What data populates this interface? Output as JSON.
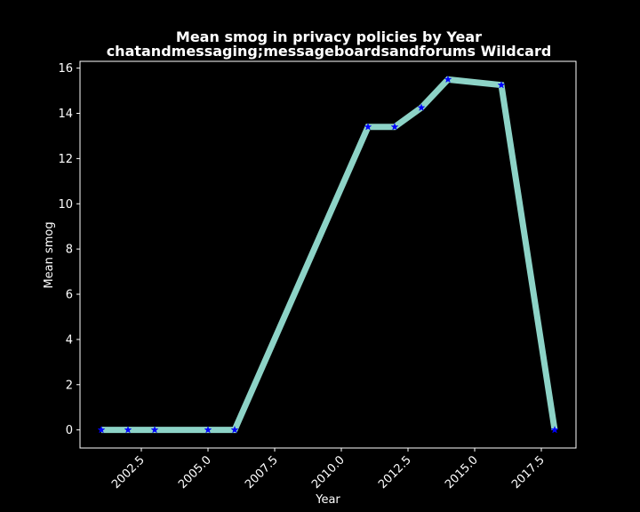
{
  "chart_data": {
    "type": "line",
    "title": "Mean smog in privacy policies by Year",
    "subtitle": "chatandmessaging;messageboardsandforums Wildcard",
    "xlabel": "Year",
    "ylabel": "Mean smog",
    "x": [
      2001,
      2002,
      2003,
      2005,
      2006,
      2011,
      2012,
      2013,
      2014,
      2016,
      2018
    ],
    "series": [
      {
        "values": [
          0,
          0,
          0,
          0,
          0,
          13.4,
          13.4,
          14.25,
          15.5,
          15.25,
          0
        ]
      }
    ],
    "xlim": [
      2000.2,
      2018.8
    ],
    "ylim": [
      -0.8,
      16.3
    ],
    "xticks": [
      2002.5,
      2005.0,
      2007.5,
      2010.0,
      2012.5,
      2015.0,
      2017.5
    ],
    "xtick_labels": [
      "2002.5",
      "2005.0",
      "2007.5",
      "2010.0",
      "2012.5",
      "2015.0",
      "2017.5"
    ],
    "yticks": [
      0,
      2,
      4,
      6,
      8,
      10,
      12,
      14,
      16
    ],
    "ytick_labels": [
      "0",
      "2",
      "4",
      "6",
      "8",
      "10",
      "12",
      "14",
      "16"
    ],
    "grid": false,
    "line_color": "#8dd3c7",
    "marker_color": "#0000ff",
    "background": "#000000",
    "axis_color": "#ffffff"
  }
}
